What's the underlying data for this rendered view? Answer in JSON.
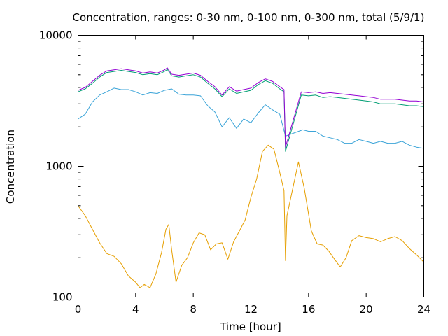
{
  "chart_data": {
    "type": "line",
    "title": "Concentration, ranges: 0-30 nm, 0-100 nm, 0-300 nm, total (5/9/1)",
    "xlabel": "Time [hour]",
    "ylabel": "Concentration",
    "xlim": [
      0,
      24
    ],
    "ylim": [
      100,
      10000
    ],
    "yscale": "log",
    "grid": false,
    "legend": "none",
    "xticks": [
      0,
      4,
      8,
      12,
      16,
      20,
      24
    ],
    "xtick_labels": [
      "0",
      "4",
      "8",
      "12",
      "16",
      "20",
      "24"
    ],
    "yticks": [
      100,
      1000,
      10000
    ],
    "ytick_labels": [
      "100",
      "1000",
      "10000"
    ],
    "series": [
      {
        "color": "#e69f00",
        "points": [
          [
            0,
            500
          ],
          [
            0.5,
            420
          ],
          [
            1,
            330
          ],
          [
            1.5,
            260
          ],
          [
            2,
            215
          ],
          [
            2.5,
            205
          ],
          [
            3,
            180
          ],
          [
            3.5,
            145
          ],
          [
            4,
            130
          ],
          [
            4.3,
            118
          ],
          [
            4.6,
            125
          ],
          [
            5,
            118
          ],
          [
            5.4,
            150
          ],
          [
            5.8,
            220
          ],
          [
            6.1,
            330
          ],
          [
            6.3,
            360
          ],
          [
            6.5,
            230
          ],
          [
            6.8,
            130
          ],
          [
            7.2,
            175
          ],
          [
            7.6,
            200
          ],
          [
            8,
            260
          ],
          [
            8.4,
            310
          ],
          [
            8.8,
            300
          ],
          [
            9.2,
            230
          ],
          [
            9.6,
            255
          ],
          [
            10,
            260
          ],
          [
            10.4,
            195
          ],
          [
            10.8,
            265
          ],
          [
            11.2,
            320
          ],
          [
            11.6,
            390
          ],
          [
            12,
            580
          ],
          [
            12.4,
            800
          ],
          [
            12.8,
            1300
          ],
          [
            13.2,
            1450
          ],
          [
            13.6,
            1350
          ],
          [
            14,
            900
          ],
          [
            14.3,
            650
          ],
          [
            14.4,
            190
          ],
          [
            14.5,
            420
          ],
          [
            15.3,
            1080
          ],
          [
            15.7,
            680
          ],
          [
            16.2,
            320
          ],
          [
            16.6,
            255
          ],
          [
            17,
            250
          ],
          [
            17.4,
            225
          ],
          [
            17.8,
            195
          ],
          [
            18.2,
            170
          ],
          [
            18.6,
            200
          ],
          [
            19,
            270
          ],
          [
            19.5,
            295
          ],
          [
            20,
            285
          ],
          [
            20.5,
            280
          ],
          [
            21,
            265
          ],
          [
            21.5,
            280
          ],
          [
            22,
            290
          ],
          [
            22.5,
            270
          ],
          [
            23,
            235
          ],
          [
            23.5,
            210
          ],
          [
            24,
            185
          ]
        ]
      },
      {
        "color": "#3ba4d8",
        "points": [
          [
            0,
            2300
          ],
          [
            0.5,
            2500
          ],
          [
            1,
            3100
          ],
          [
            1.5,
            3500
          ],
          [
            2,
            3700
          ],
          [
            2.5,
            3950
          ],
          [
            3,
            3850
          ],
          [
            3.5,
            3850
          ],
          [
            4,
            3700
          ],
          [
            4.5,
            3500
          ],
          [
            5,
            3650
          ],
          [
            5.5,
            3600
          ],
          [
            6,
            3800
          ],
          [
            6.5,
            3900
          ],
          [
            7,
            3550
          ],
          [
            7.5,
            3500
          ],
          [
            8,
            3500
          ],
          [
            8.5,
            3450
          ],
          [
            9,
            2900
          ],
          [
            9.5,
            2600
          ],
          [
            10,
            2000
          ],
          [
            10.5,
            2350
          ],
          [
            11,
            1950
          ],
          [
            11.5,
            2300
          ],
          [
            12,
            2150
          ],
          [
            12.5,
            2550
          ],
          [
            13,
            2950
          ],
          [
            13.5,
            2700
          ],
          [
            14,
            2500
          ],
          [
            14.4,
            1700
          ],
          [
            15.6,
            1900
          ],
          [
            16,
            1850
          ],
          [
            16.5,
            1850
          ],
          [
            17,
            1700
          ],
          [
            17.5,
            1650
          ],
          [
            18,
            1600
          ],
          [
            18.5,
            1500
          ],
          [
            19,
            1500
          ],
          [
            19.5,
            1600
          ],
          [
            20,
            1550
          ],
          [
            20.5,
            1500
          ],
          [
            21,
            1550
          ],
          [
            21.5,
            1500
          ],
          [
            22,
            1500
          ],
          [
            22.5,
            1550
          ],
          [
            23,
            1450
          ],
          [
            23.5,
            1400
          ],
          [
            24,
            1370
          ]
        ]
      },
      {
        "color": "#009e73",
        "points": [
          [
            0,
            3700
          ],
          [
            0.5,
            3900
          ],
          [
            1,
            4300
          ],
          [
            1.5,
            4800
          ],
          [
            2,
            5200
          ],
          [
            2.5,
            5300
          ],
          [
            3,
            5400
          ],
          [
            3.5,
            5300
          ],
          [
            4,
            5200
          ],
          [
            4.5,
            5000
          ],
          [
            5,
            5100
          ],
          [
            5.5,
            5000
          ],
          [
            6,
            5300
          ],
          [
            6.2,
            5500
          ],
          [
            6.5,
            4900
          ],
          [
            7,
            4800
          ],
          [
            7.5,
            4900
          ],
          [
            8,
            5000
          ],
          [
            8.5,
            4800
          ],
          [
            9,
            4300
          ],
          [
            9.5,
            3900
          ],
          [
            10,
            3400
          ],
          [
            10.5,
            3900
          ],
          [
            11,
            3600
          ],
          [
            11.5,
            3700
          ],
          [
            12,
            3800
          ],
          [
            12.5,
            4200
          ],
          [
            13,
            4500
          ],
          [
            13.5,
            4300
          ],
          [
            14,
            3900
          ],
          [
            14.3,
            3700
          ],
          [
            14.4,
            1300
          ],
          [
            15.5,
            3500
          ],
          [
            16,
            3450
          ],
          [
            16.5,
            3500
          ],
          [
            17,
            3350
          ],
          [
            17.5,
            3400
          ],
          [
            18,
            3350
          ],
          [
            18.5,
            3300
          ],
          [
            19,
            3250
          ],
          [
            19.5,
            3200
          ],
          [
            20,
            3150
          ],
          [
            20.5,
            3100
          ],
          [
            21,
            3000
          ],
          [
            21.5,
            3000
          ],
          [
            22,
            3000
          ],
          [
            22.5,
            2950
          ],
          [
            23,
            2900
          ],
          [
            23.5,
            2900
          ],
          [
            24,
            2850
          ]
        ]
      },
      {
        "color": "#9400d3",
        "points": [
          [
            0,
            3800
          ],
          [
            0.5,
            4000
          ],
          [
            1,
            4450
          ],
          [
            1.5,
            4950
          ],
          [
            2,
            5350
          ],
          [
            2.5,
            5450
          ],
          [
            3,
            5550
          ],
          [
            3.5,
            5450
          ],
          [
            4,
            5350
          ],
          [
            4.5,
            5150
          ],
          [
            5,
            5250
          ],
          [
            5.5,
            5150
          ],
          [
            6,
            5450
          ],
          [
            6.2,
            5650
          ],
          [
            6.5,
            5050
          ],
          [
            7,
            4950
          ],
          [
            7.5,
            5050
          ],
          [
            8,
            5150
          ],
          [
            8.5,
            4950
          ],
          [
            9,
            4450
          ],
          [
            9.5,
            4050
          ],
          [
            10,
            3500
          ],
          [
            10.5,
            4050
          ],
          [
            11,
            3750
          ],
          [
            11.5,
            3850
          ],
          [
            12,
            3950
          ],
          [
            12.5,
            4350
          ],
          [
            13,
            4650
          ],
          [
            13.5,
            4450
          ],
          [
            14,
            4050
          ],
          [
            14.3,
            3850
          ],
          [
            14.4,
            1400
          ],
          [
            15.5,
            3700
          ],
          [
            16,
            3650
          ],
          [
            16.5,
            3700
          ],
          [
            17,
            3600
          ],
          [
            17.5,
            3650
          ],
          [
            18,
            3600
          ],
          [
            18.5,
            3550
          ],
          [
            19,
            3500
          ],
          [
            19.5,
            3450
          ],
          [
            20,
            3400
          ],
          [
            20.5,
            3350
          ],
          [
            21,
            3250
          ],
          [
            21.5,
            3250
          ],
          [
            22,
            3250
          ],
          [
            22.5,
            3200
          ],
          [
            23,
            3150
          ],
          [
            23.5,
            3150
          ],
          [
            24,
            3100
          ]
        ]
      }
    ]
  }
}
